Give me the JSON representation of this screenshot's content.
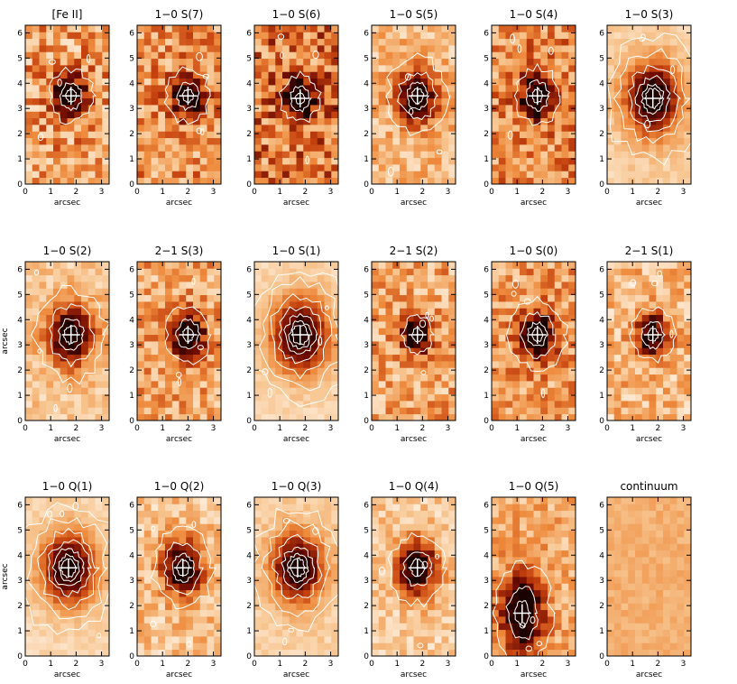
{
  "chart_data": {
    "type": "heatmap",
    "shared_axes": {
      "xlabel": "arcsec",
      "ylabel": "arcsec",
      "xlim": [
        0,
        3.3
      ],
      "ylim": [
        0,
        6.3
      ],
      "xticks": [
        0,
        1,
        2,
        3
      ],
      "yticks": [
        0,
        1,
        2,
        3,
        4,
        5,
        6
      ],
      "xtick_labels": [
        "0",
        "1",
        "2",
        "3"
      ],
      "ytick_labels": [
        "0",
        "1",
        "2",
        "3",
        "4",
        "5",
        "6"
      ]
    },
    "colormap": [
      "#fff3e6",
      "#f7c48e",
      "#ee8a3c",
      "#c4400e",
      "#6b0a02",
      "#1a0200"
    ],
    "contour_color": "#ffffff",
    "marker": {
      "shape": "cross",
      "color": "#ffffff"
    },
    "panels": [
      {
        "title": "[Fe II]",
        "peak": [
          1.8,
          3.5
        ],
        "width": [
          0.45,
          0.55
        ],
        "level": 0.55,
        "noise": 0.55,
        "contours": 3,
        "ylabel_shown": false,
        "xlabel_shown": true
      },
      {
        "title": "1−0 S(7)",
        "peak": [
          2.0,
          3.5
        ],
        "width": [
          0.45,
          0.55
        ],
        "level": 0.6,
        "noise": 0.5,
        "contours": 3,
        "ylabel_shown": false,
        "xlabel_shown": true
      },
      {
        "title": "1−0 S(6)",
        "peak": [
          1.8,
          3.4
        ],
        "width": [
          0.4,
          0.5
        ],
        "level": 0.75,
        "noise": 0.6,
        "contours": 3,
        "ylabel_shown": false,
        "xlabel_shown": true
      },
      {
        "title": "1−0 S(5)",
        "peak": [
          1.8,
          3.5
        ],
        "width": [
          0.55,
          0.7
        ],
        "level": 0.4,
        "noise": 0.35,
        "contours": 4,
        "ylabel_shown": false,
        "xlabel_shown": true
      },
      {
        "title": "1−0 S(4)",
        "peak": [
          1.8,
          3.5
        ],
        "width": [
          0.45,
          0.6
        ],
        "level": 0.65,
        "noise": 0.5,
        "contours": 3,
        "ylabel_shown": false,
        "xlabel_shown": true
      },
      {
        "title": "1−0 S(3)",
        "peak": [
          1.8,
          3.4
        ],
        "width": [
          0.75,
          1.0
        ],
        "level": 0.25,
        "noise": 0.15,
        "contours": 6,
        "ylabel_shown": false,
        "xlabel_shown": true
      },
      {
        "title": "1−0 S(2)",
        "peak": [
          1.8,
          3.4
        ],
        "width": [
          0.65,
          0.85
        ],
        "level": 0.3,
        "noise": 0.25,
        "contours": 4,
        "ylabel_shown": true,
        "xlabel_shown": true
      },
      {
        "title": "2−1 S(3)",
        "peak": [
          2.0,
          3.4
        ],
        "width": [
          0.45,
          0.6
        ],
        "level": 0.5,
        "noise": 0.45,
        "contours": 3,
        "ylabel_shown": false,
        "xlabel_shown": true
      },
      {
        "title": "1−0 S(1)",
        "peak": [
          1.8,
          3.4
        ],
        "width": [
          0.8,
          1.05
        ],
        "level": 0.2,
        "noise": 0.12,
        "contours": 7,
        "ylabel_shown": false,
        "xlabel_shown": true
      },
      {
        "title": "2−1 S(2)",
        "peak": [
          1.8,
          3.4
        ],
        "width": [
          0.4,
          0.5
        ],
        "level": 0.5,
        "noise": 0.45,
        "contours": 2,
        "ylabel_shown": false,
        "xlabel_shown": true
      },
      {
        "title": "1−0 S(0)",
        "peak": [
          1.8,
          3.4
        ],
        "width": [
          0.5,
          0.65
        ],
        "level": 0.55,
        "noise": 0.45,
        "contours": 4,
        "ylabel_shown": false,
        "xlabel_shown": true
      },
      {
        "title": "2−1 S(1)",
        "peak": [
          1.8,
          3.4
        ],
        "width": [
          0.45,
          0.55
        ],
        "level": 0.4,
        "noise": 0.4,
        "contours": 3,
        "ylabel_shown": false,
        "xlabel_shown": true
      },
      {
        "title": "1−0 Q(1)",
        "peak": [
          1.7,
          3.5
        ],
        "width": [
          0.75,
          1.0
        ],
        "level": 0.2,
        "noise": 0.12,
        "contours": 7,
        "ylabel_shown": true,
        "xlabel_shown": true
      },
      {
        "title": "1−0 Q(2)",
        "peak": [
          1.8,
          3.5
        ],
        "width": [
          0.55,
          0.75
        ],
        "level": 0.35,
        "noise": 0.35,
        "contours": 4,
        "ylabel_shown": false,
        "xlabel_shown": true
      },
      {
        "title": "1−0 Q(3)",
        "peak": [
          1.7,
          3.5
        ],
        "width": [
          0.7,
          0.95
        ],
        "level": 0.25,
        "noise": 0.15,
        "contours": 6,
        "ylabel_shown": false,
        "xlabel_shown": true
      },
      {
        "title": "1−0 Q(4)",
        "peak": [
          1.8,
          3.5
        ],
        "width": [
          0.55,
          0.75
        ],
        "level": 0.3,
        "noise": 0.3,
        "contours": 3,
        "ylabel_shown": false,
        "xlabel_shown": true
      },
      {
        "title": "1−0 Q(5)",
        "peak": [
          1.2,
          1.7
        ],
        "width": [
          0.6,
          1.1
        ],
        "level": 0.45,
        "noise": 0.35,
        "contours": 3,
        "ylabel_shown": false,
        "xlabel_shown": true
      },
      {
        "title": "continuum",
        "peak": null,
        "width": null,
        "level": 0.45,
        "noise": 0.12,
        "contours": 0,
        "ylabel_shown": false,
        "xlabel_shown": true
      }
    ]
  }
}
